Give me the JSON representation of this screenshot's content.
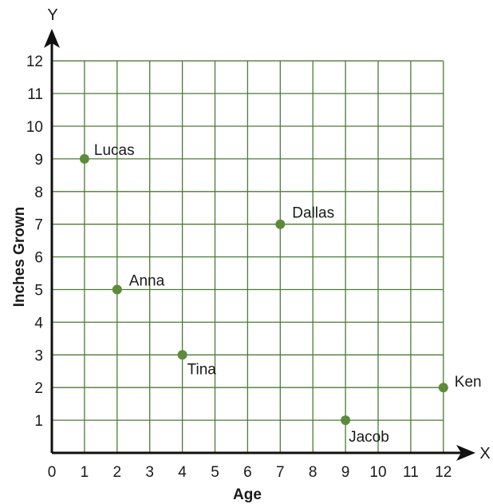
{
  "chart_data": {
    "type": "scatter",
    "xlabel": "Age",
    "ylabel": "Inches Grown",
    "x_axis_name": "X",
    "y_axis_name": "Y",
    "xlim": [
      0,
      12
    ],
    "ylim": [
      0,
      12
    ],
    "x_ticks": [
      "0",
      "1",
      "2",
      "3",
      "4",
      "5",
      "6",
      "7",
      "8",
      "9",
      "10",
      "11",
      "12"
    ],
    "y_ticks": [
      "1",
      "2",
      "3",
      "4",
      "5",
      "6",
      "7",
      "8",
      "9",
      "10",
      "11",
      "12"
    ],
    "grid": true,
    "points": [
      {
        "label": "Lucas",
        "x": 1,
        "y": 9
      },
      {
        "label": "Anna",
        "x": 2,
        "y": 5
      },
      {
        "label": "Tina",
        "x": 4,
        "y": 3
      },
      {
        "label": "Dallas",
        "x": 7,
        "y": 7
      },
      {
        "label": "Jacob",
        "x": 9,
        "y": 1
      },
      {
        "label": "Ken",
        "x": 12,
        "y": 2
      }
    ],
    "colors": {
      "grid": "#4d7a36",
      "point": "#5e8a3c",
      "axis": "#111111"
    }
  }
}
